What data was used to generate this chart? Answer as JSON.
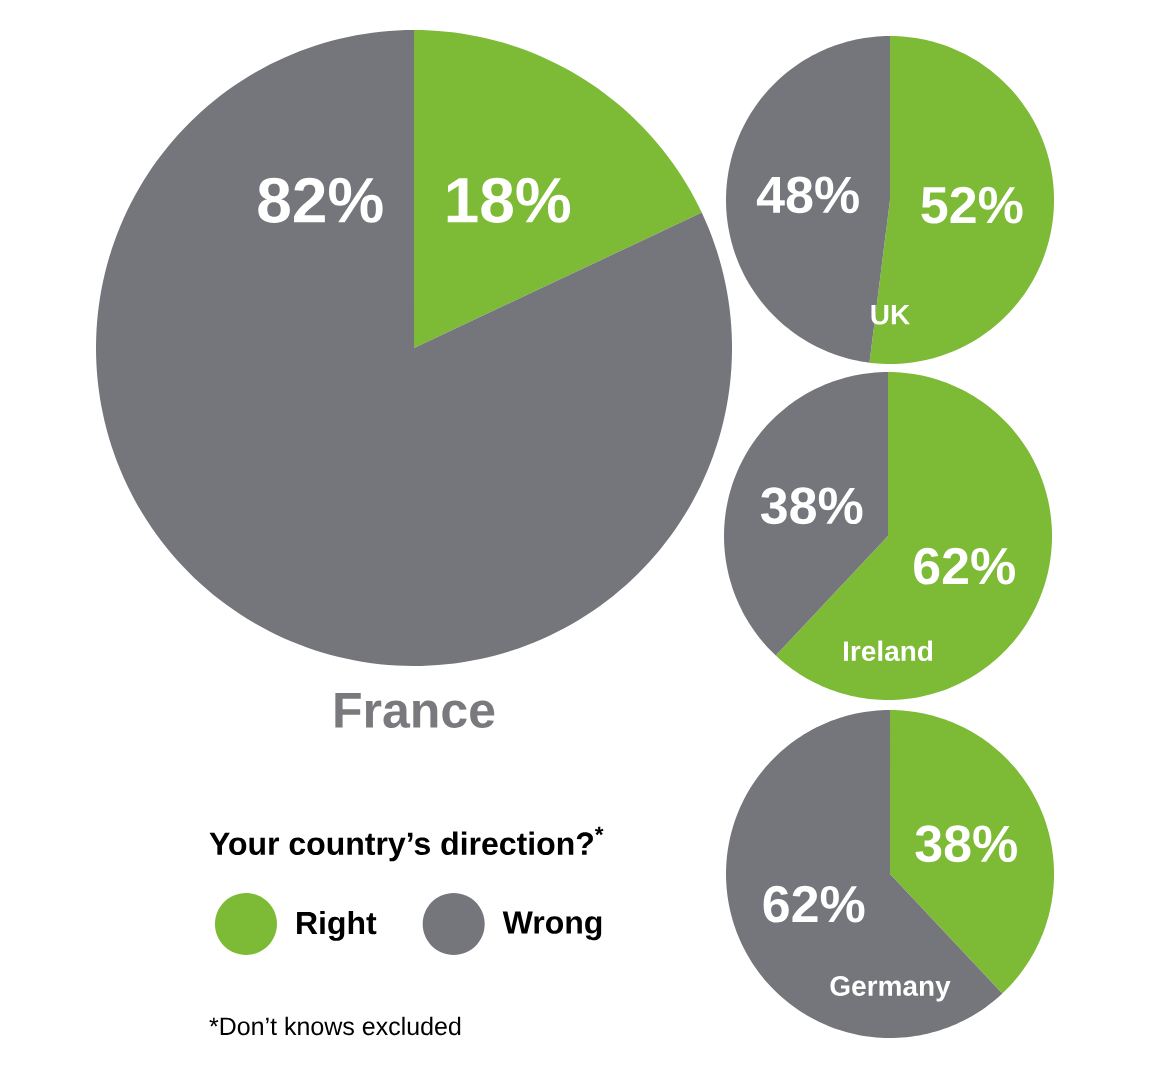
{
  "chart_data": [
    {
      "type": "pie",
      "title": "France",
      "categories": [
        "Right",
        "Wrong"
      ],
      "values": [
        18,
        82
      ],
      "value_labels": [
        "18%",
        "82%"
      ],
      "colors": [
        "#7dba36",
        "#75767b"
      ],
      "legend": "bottom",
      "legend_title": "Your country’s direction?$^{*}$",
      "annotations": [
        "*Don’t knows excluded"
      ]
    },
    {
      "type": "pie",
      "title": "UK",
      "categories": [
        null,
        null
      ],
      "values": [
        52,
        48
      ],
      "value_labels": [
        "52%",
        "48%"
      ],
      "colors": [
        "#7dba36",
        "#75767b"
      ]
    },
    {
      "type": "pie",
      "title": "Ireland",
      "categories": [
        null,
        null
      ],
      "values": [
        62,
        38
      ],
      "value_labels": [
        "62%",
        "38%"
      ],
      "colors": [
        "#7dba36",
        "#75767b"
      ]
    },
    {
      "type": "pie",
      "title": "Germany",
      "categories": [
        null,
        null
      ],
      "values": [
        38,
        62
      ],
      "value_labels": [
        "38%",
        "62%"
      ],
      "colors": [
        "#7dba36",
        "#75767b"
      ]
    }
  ]
}
